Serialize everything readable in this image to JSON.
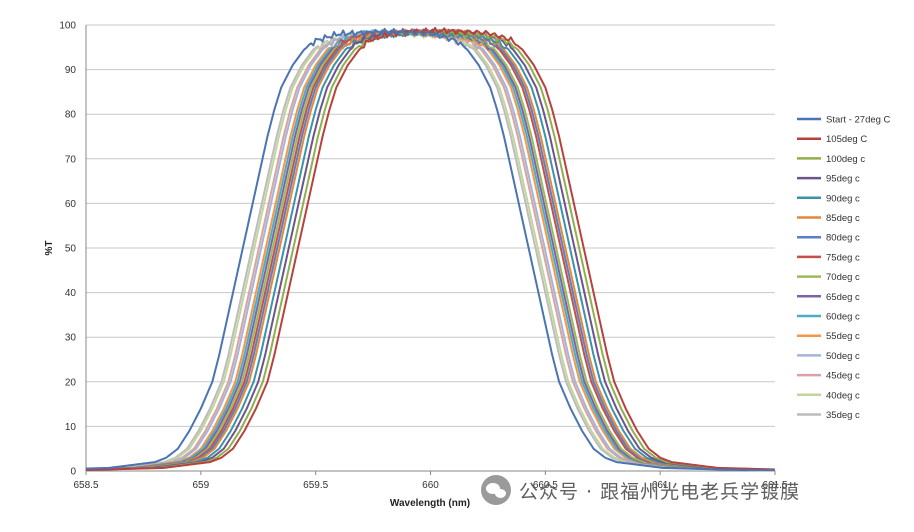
{
  "chart_data": {
    "type": "line",
    "title": "",
    "xlabel": "Wavelength (nm)",
    "ylabel": "%T",
    "xlim": [
      658.5,
      661.5
    ],
    "ylim": [
      0,
      100
    ],
    "x_ticks": [
      "658.5",
      "659",
      "659.5",
      "660",
      "660.5",
      "661",
      "661.5"
    ],
    "y_ticks": [
      "0",
      "10",
      "20",
      "30",
      "40",
      "50",
      "60",
      "70",
      "80",
      "90",
      "100"
    ],
    "grid": "horizontal",
    "legend_position": "right",
    "curve_shape": {
      "x": [
        -0.95,
        -0.6,
        -0.4,
        -0.35,
        -0.3,
        -0.25,
        -0.2,
        -0.15,
        -0.12,
        -0.09,
        -0.06,
        -0.03,
        0,
        0.03,
        0.06,
        0.09,
        0.12,
        0.15,
        0.2,
        0.25,
        0.3,
        0.4,
        0.6,
        0.9
      ],
      "y": [
        0.2,
        0.7,
        2,
        3,
        5,
        9,
        14,
        20,
        26,
        33,
        40,
        47,
        54,
        61,
        68,
        75,
        81,
        86,
        91,
        94.5,
        96.5,
        98,
        98.5,
        98.5
      ]
    },
    "series": [
      {
        "name": "Start - 27deg C",
        "color": "#4a74b4",
        "rise": 659.2,
        "fall": 660.41,
        "top": 98.5
      },
      {
        "name": "105deg C",
        "color": "#b8413e",
        "rise": 659.44,
        "fall": 660.65,
        "top": 98.7
      },
      {
        "name": "100deg c",
        "color": "#8fb04a",
        "rise": 659.42,
        "fall": 660.63,
        "top": 98.4
      },
      {
        "name": "95deg c",
        "color": "#6e548f",
        "rise": 659.4,
        "fall": 660.61,
        "top": 98.6
      },
      {
        "name": "90deg c",
        "color": "#3a93ab",
        "rise": 659.38,
        "fall": 660.59,
        "top": 98.3
      },
      {
        "name": "85deg c",
        "color": "#e2893b",
        "rise": 659.36,
        "fall": 660.57,
        "top": 98.5
      },
      {
        "name": "80deg c",
        "color": "#5b7fc0",
        "rise": 659.35,
        "fall": 660.56,
        "top": 98.2
      },
      {
        "name": "75deg c",
        "color": "#c4504d",
        "rise": 659.34,
        "fall": 660.55,
        "top": 98.6
      },
      {
        "name": "70deg c",
        "color": "#9bbb59",
        "rise": 659.33,
        "fall": 660.53,
        "top": 98.4
      },
      {
        "name": "65deg c",
        "color": "#8064a2",
        "rise": 659.32,
        "fall": 660.52,
        "top": 98.3
      },
      {
        "name": "60deg c",
        "color": "#4bacc6",
        "rise": 659.31,
        "fall": 660.51,
        "top": 98.5
      },
      {
        "name": "55deg c",
        "color": "#f79646",
        "rise": 659.3,
        "fall": 660.5,
        "top": 98.2
      },
      {
        "name": "50deg c",
        "color": "#a6b4d6",
        "rise": 659.28,
        "fall": 660.48,
        "top": 98.4
      },
      {
        "name": "45deg c",
        "color": "#d9a3a2",
        "rise": 659.27,
        "fall": 660.47,
        "top": 98.3
      },
      {
        "name": "40deg c",
        "color": "#c2d69b",
        "rise": 659.25,
        "fall": 660.45,
        "top": 98.2
      },
      {
        "name": "35deg c",
        "color": "#bcbcbc",
        "rise": 659.24,
        "fall": 660.44,
        "top": 98.1
      }
    ]
  },
  "watermark": {
    "text": "公众号 · 跟福州光电老兵学镀膜",
    "logo_icon": "wechat-icon"
  }
}
